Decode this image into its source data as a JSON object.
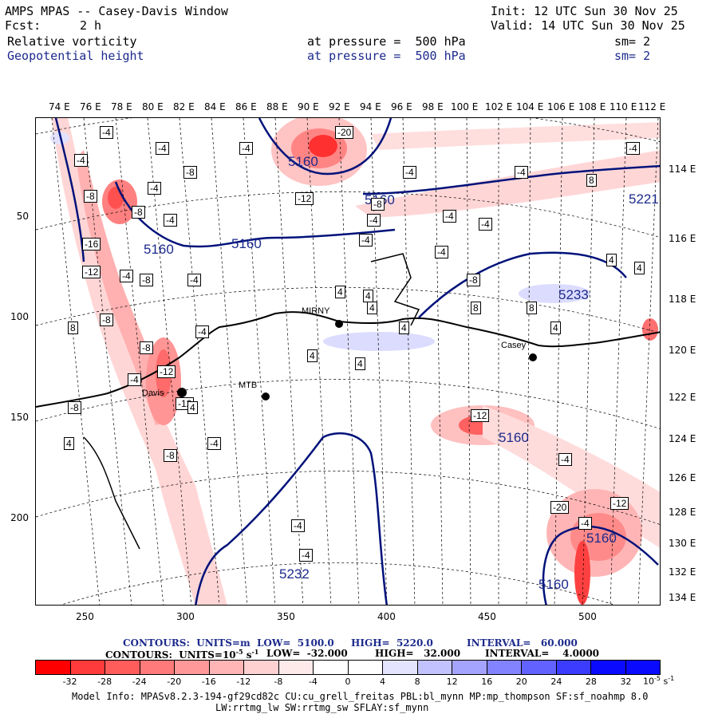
{
  "header": {
    "title": "AMPS MPAS -- Casey-Davis Window",
    "init": "Init: 12 UTC Sun 30 Nov 25",
    "fcst_label": "Fcst:",
    "fcst_value": "2 h",
    "valid": "Valid: 14 UTC Sun 30 Nov 25",
    "field1": "Relative vorticity",
    "field1_level": "at pressure =  500 hPa",
    "field1_sm": "sm= 2",
    "field2": "Geopotential height",
    "field2_level": "at pressure =  500 hPa",
    "field2_sm": "sm= 2"
  },
  "axes": {
    "top_lon": [
      "74 E",
      "76 E",
      "78 E",
      "80 E",
      "82 E",
      "84 E",
      "86 E",
      "88 E",
      "90 E",
      "92 E",
      "94 E",
      "96 E",
      "98 E",
      "100 E",
      "102 E",
      "104 E",
      "106 E",
      "108 E",
      "110 E",
      "112 E"
    ],
    "right_lon": [
      "114 E",
      "116 E",
      "118 E",
      "120 E",
      "122 E",
      "124 E",
      "126 E",
      "128 E",
      "130 E",
      "132 E",
      "134 E"
    ],
    "left_y": [
      "50",
      "100",
      "150",
      "200"
    ],
    "bottom_x": [
      "250",
      "300",
      "350",
      "400",
      "450",
      "500"
    ]
  },
  "stations": [
    {
      "name": "MIRNY"
    },
    {
      "name": "Casey"
    },
    {
      "name": "Davis"
    },
    {
      "name": "MTB"
    }
  ],
  "height_labels": [
    "5160",
    "5160",
    "5160",
    "5160",
    "5221",
    "5233",
    "5232",
    "5160",
    "5160",
    "5160"
  ],
  "vort_labels": [
    "-4",
    "-4",
    "-4",
    "-20",
    "-4",
    "-8",
    "-8",
    "-4",
    "-4",
    "-8",
    "-8",
    "-16",
    "-12",
    "-4",
    "-4",
    "-8",
    "-4",
    "-8",
    "-12",
    "-4",
    "-8",
    "-12",
    "-8",
    "-4",
    "-12",
    "-8",
    "-8",
    "-4",
    "4",
    "4",
    "4",
    "4",
    "4",
    "8",
    "8",
    "8",
    "4",
    "4",
    "4",
    "4",
    "4",
    "-4",
    "-4",
    "-4",
    "-4",
    "-4",
    "-4",
    "-4",
    "-4",
    "-4",
    "-12",
    "-4",
    "-4",
    "-20",
    "-12",
    "8",
    "4"
  ],
  "contour_info": {
    "line1_contours": "CONTOURS:  UNITS=m  LOW=  5100.0",
    "line1_high": "HIGH=  5220.0",
    "line1_interval": "INTERVAL=   60.000",
    "line2_contours": "CONTOURS:  UNITS=10",
    "line2_exp": "-5",
    "line2_units": " s",
    "line2_exp2": "-1",
    "line2_low": "LOW=  -32.000",
    "line2_high": "HIGH=   32.000",
    "line2_interval": "INTERVAL=    4.0000"
  },
  "colorbar": {
    "labels": [
      "-32",
      "-28",
      "-24",
      "-20",
      "-16",
      "-12",
      "-8",
      "-4",
      "0",
      "4",
      "8",
      "12",
      "16",
      "20",
      "24",
      "28",
      "32"
    ],
    "units": "10",
    "units_exp": "-5",
    "units_s": " s",
    "units_exp2": "-1",
    "colors": [
      "#ff0000",
      "#ff3b3b",
      "#ff5c5c",
      "#ff7a7a",
      "#ff9999",
      "#ffb5b5",
      "#ffd1d1",
      "#ffeaea",
      "#ffffff",
      "#ffffff",
      "#e4e4ff",
      "#c2c2ff",
      "#a4a4ff",
      "#8383ff",
      "#6262ff",
      "#3c3cff",
      "#0a0aff"
    ]
  },
  "model_info": {
    "line1": "Model Info: MPASv8.2.3-194-gf29cd82c CU:cu_grell_freitas PBL:bl_mynn MP:mp_thompson SF:sf_noahmp 8.0",
    "line2": "LW:rrtmg_lw SW:rrtmg_sw SFLAY:sf_mynn"
  }
}
